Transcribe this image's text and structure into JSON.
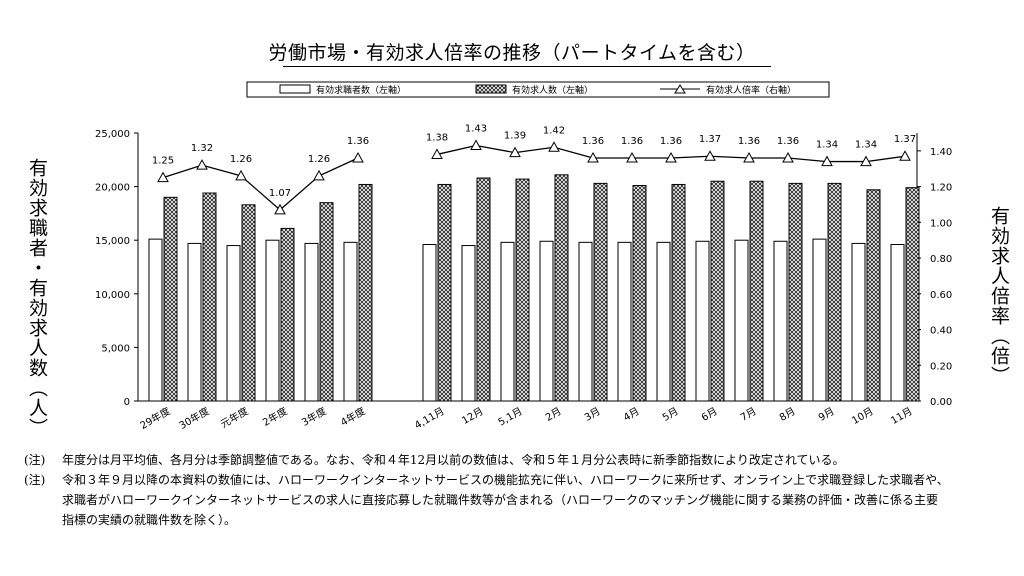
{
  "title": "労働市場・有効求人倍率の推移（パートタイムを含む）",
  "legend": {
    "seekers": "有効求職者数（左軸）",
    "offers": "有効求人数（左軸）",
    "ratio": "有効求人倍率（右軸）"
  },
  "left_axis_label": "有効求職者・有効求人数（人）",
  "right_axis_label": "有効求人倍率（倍）",
  "notes": [
    {
      "mark": "(注)",
      "lines": [
        "年度分は月平均値、各月分は季節調整値である。なお、令和４年12月以前の数値は、令和５年１月分公表時に新季節指数により改定されている。"
      ]
    },
    {
      "mark": "(注)",
      "lines": [
        "令和３年９月以降の本資料の数値には、ハローワークインターネットサービスの機能拡充に伴い、ハローワークに来所せず、オンライン上で求職登録した求職者や、",
        "求職者がハローワークインターネットサービスの求人に直接応募した就職件数等が含まれる（ハローワークのマッチング機能に関する業務の評価・改善に係る主要",
        "指標の実績の就職件数を除く）。"
      ]
    }
  ],
  "colors": {
    "seekers_fill": "#ffffff",
    "offers_fill": "crosshatch",
    "line": "#000000"
  },
  "chart_data": {
    "type": "bar",
    "categories": [
      "29年度",
      "30年度",
      "元年度",
      "2年度",
      "3年度",
      "4年度",
      "4,11月",
      "12月",
      "5,1月",
      "2月",
      "3月",
      "4月",
      "5月",
      "6月",
      "7月",
      "8月",
      "9月",
      "10月",
      "11月"
    ],
    "series": [
      {
        "name": "有効求職者数（左軸）",
        "axis": "left",
        "values": [
          15100,
          14700,
          14500,
          15000,
          14700,
          14800,
          14600,
          14500,
          14800,
          14900,
          14800,
          14800,
          14800,
          14900,
          15000,
          14900,
          15100,
          14700,
          14600
        ]
      },
      {
        "name": "有効求人数（左軸）",
        "axis": "left",
        "values": [
          19000,
          19400,
          18300,
          16100,
          18500,
          20200,
          20200,
          20800,
          20700,
          21100,
          20300,
          20100,
          20200,
          20500,
          20500,
          20300,
          20300,
          19700,
          19900
        ]
      },
      {
        "name": "有効求人倍率（右軸）",
        "axis": "right",
        "type": "line",
        "values": [
          1.25,
          1.32,
          1.26,
          1.07,
          1.26,
          1.36,
          1.38,
          1.43,
          1.39,
          1.42,
          1.36,
          1.36,
          1.36,
          1.37,
          1.36,
          1.36,
          1.34,
          1.34,
          1.37
        ],
        "labels": [
          "1.25",
          "1.32",
          "1.26",
          "1.07",
          "1.26",
          "1.36",
          "1.38",
          "1.43",
          "1.39",
          "1.42",
          "1.36",
          "1.36",
          "1.36",
          "1.37",
          "1.36",
          "1.36",
          "1.34",
          "1.34",
          "1.37"
        ]
      }
    ],
    "left_ylim": [
      0,
      25000
    ],
    "left_ticks": [
      "0",
      "5,000",
      "10,000",
      "15,000",
      "20,000",
      "25,000"
    ],
    "right_ylim": [
      0,
      1.5
    ],
    "right_ticks": [
      "0.00",
      "0.20",
      "0.40",
      "0.60",
      "0.80",
      "1.00",
      "1.20",
      "1.40"
    ],
    "legend_position": "top",
    "grid": false
  }
}
